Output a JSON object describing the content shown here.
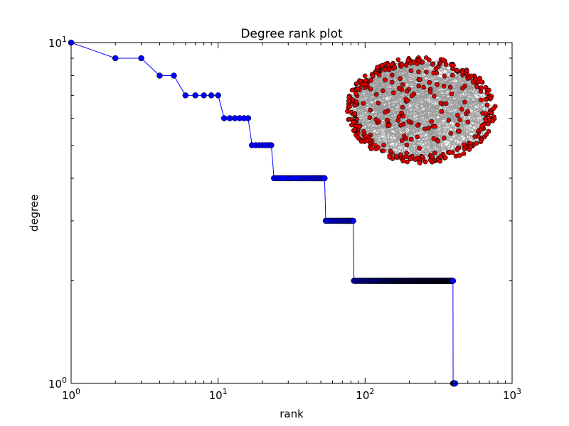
{
  "chart_data": [
    {
      "type": "line",
      "title": "Degree rank plot",
      "xlabel": "rank",
      "ylabel": "degree",
      "xscale": "log",
      "yscale": "log",
      "xlim": [
        1,
        1000
      ],
      "ylim": [
        1,
        10
      ],
      "grid": false,
      "x_ticks": [
        {
          "value": 1,
          "base": "10",
          "exp": "0"
        },
        {
          "value": 10,
          "base": "10",
          "exp": "1"
        },
        {
          "value": 100,
          "base": "10",
          "exp": "2"
        },
        {
          "value": 1000,
          "base": "10",
          "exp": "3"
        }
      ],
      "y_ticks": [
        {
          "value": 1,
          "base": "10",
          "exp": "0"
        },
        {
          "value": 10,
          "base": "10",
          "exp": "1"
        }
      ],
      "series": [
        {
          "color": "#0000ff",
          "marker": "circle",
          "runs": [
            {
              "degree": 10,
              "from_rank": 1,
              "to_rank": 1
            },
            {
              "degree": 9,
              "from_rank": 2,
              "to_rank": 3
            },
            {
              "degree": 8,
              "from_rank": 4,
              "to_rank": 5
            },
            {
              "degree": 7,
              "from_rank": 6,
              "to_rank": 10
            },
            {
              "degree": 6,
              "from_rank": 11,
              "to_rank": 16
            },
            {
              "degree": 5,
              "from_rank": 17,
              "to_rank": 23
            },
            {
              "degree": 4,
              "from_rank": 24,
              "to_rank": 53
            },
            {
              "degree": 3,
              "from_rank": 54,
              "to_rank": 83
            },
            {
              "degree": 2,
              "from_rank": 84,
              "to_rank": 396
            },
            {
              "degree": 1,
              "from_rank": 397,
              "to_rank": 410
            }
          ]
        }
      ]
    },
    {
      "type": "network",
      "node_count": 410,
      "node_color": "#dd0000",
      "edge_color": "#999999",
      "layout": "ring"
    }
  ]
}
